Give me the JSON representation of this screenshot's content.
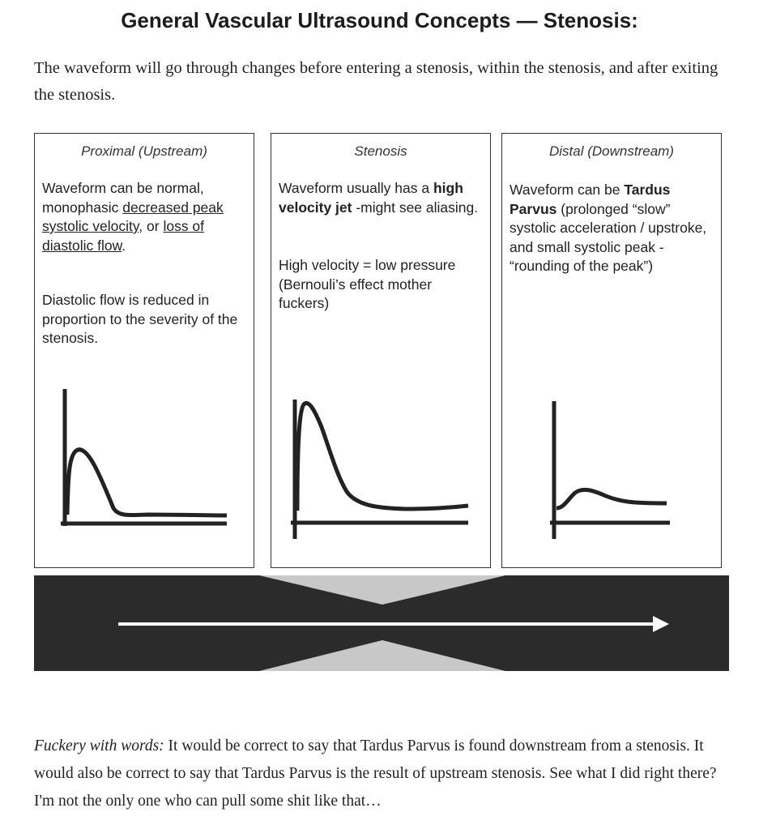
{
  "title": "General Vascular Ultrasound Concepts — Stenosis:",
  "intro": "The waveform will go through changes before entering a stenosis, within the stenosis, and after exiting the stenosis.",
  "panels": [
    {
      "heading": "Proximal (Upstream)",
      "p1_a": "Waveform can be normal, monophasic ",
      "p1_link1": "decreased peak systolic velocity",
      "p1_b": ", or ",
      "p1_link2": "loss of diastolic flow",
      "p1_c": ".",
      "p2": "Diastolic flow is reduced in proportion to the severity of the stenosis."
    },
    {
      "heading": "Stenosis",
      "p1_a": "Waveform usually has a ",
      "p1_bold": "high velocity jet",
      "p1_b": " -might see aliasing.",
      "p2": "High velocity = low pressure (Bernouli’s effect mother fuckers)"
    },
    {
      "heading": "Distal (Downstream)",
      "p1_a": "Waveform can be ",
      "p1_bold": "Tardus Parvus",
      "p1_b": " (prolonged “slow” systolic acceleration / upstroke, and small systolic peak - “rounding of the peak”)"
    }
  ],
  "footer": {
    "lead": "Fuckery with words:",
    "text": " It would be correct to say that Tardus Parvus is found downstream from a stenosis. It would also be correct to say that Tardus Parvus is the result of upstream stenosis. See what I did right there? I'm not the only one who can pull some shit like that…"
  },
  "colors": {
    "vessel": "#2b2b2b",
    "narrowing": "#c8c8c8",
    "arrow": "#ffffff"
  }
}
